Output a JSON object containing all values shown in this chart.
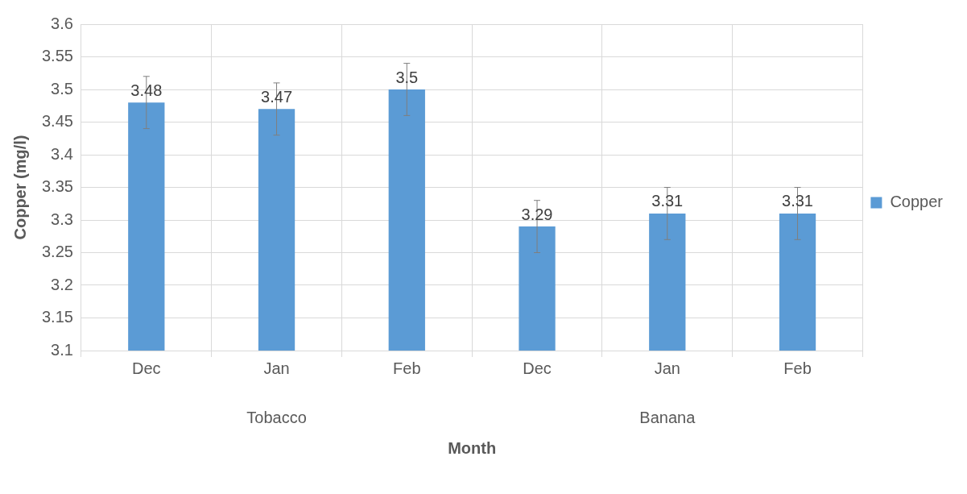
{
  "chart_data": {
    "type": "bar",
    "xlabel": "Month",
    "ylabel": "Copper (mg/l)",
    "categories": [
      "Dec",
      "Jan",
      "Feb",
      "Dec",
      "Jan",
      "Feb"
    ],
    "series": [
      {
        "name": "Copper",
        "color": "#5b9bd5",
        "values": [
          3.48,
          3.47,
          3.5,
          3.29,
          3.31,
          3.31
        ],
        "errors": [
          0.04,
          0.04,
          0.04,
          0.04,
          0.04,
          0.04
        ]
      }
    ],
    "annotations": [
      "Tobacco",
      "Banana"
    ],
    "ylim": [
      3.1,
      3.6
    ],
    "yticks": [
      3.1,
      3.15,
      3.2,
      3.25,
      3.3,
      3.35,
      3.4,
      3.45,
      3.5,
      3.55,
      3.6
    ],
    "grid": true,
    "legend": "right",
    "data_labels": true
  }
}
